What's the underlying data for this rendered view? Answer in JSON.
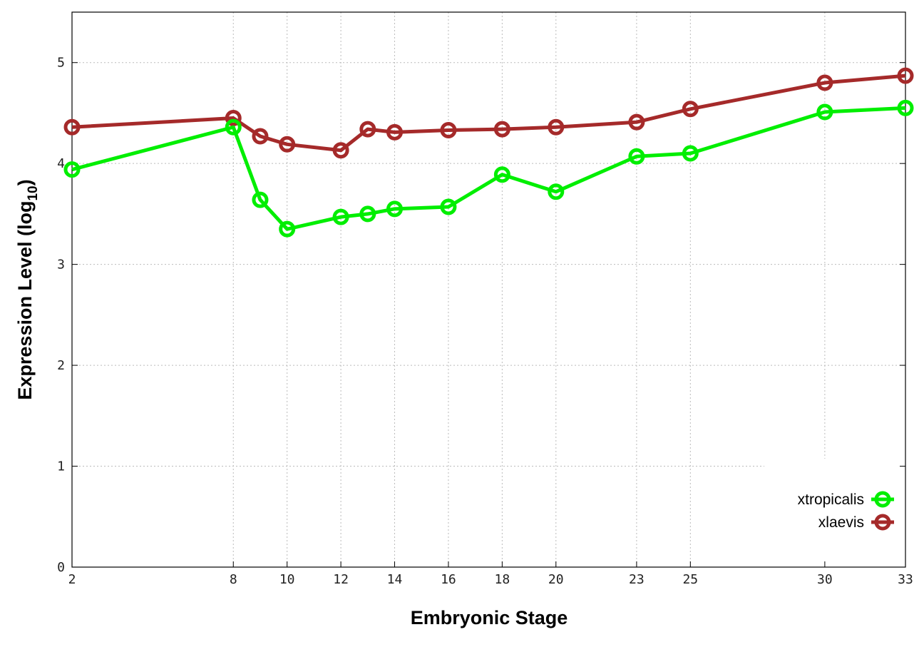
{
  "chart_data": {
    "type": "line",
    "title": "",
    "xlabel": "Embryonic Stage",
    "ylabel": "Expression Level (log10)",
    "ylabel_main": "Expression Level (log",
    "ylabel_sub": "10",
    "ylabel_close": ")",
    "xlim": [
      2,
      33
    ],
    "ylim": [
      0,
      5.5
    ],
    "xticks": [
      2,
      8,
      10,
      12,
      14,
      16,
      18,
      20,
      23,
      25,
      30,
      33
    ],
    "yticks": [
      0,
      1,
      2,
      3,
      4,
      5
    ],
    "grid": true,
    "legend_position": "bottom-right",
    "x": [
      2,
      8,
      9,
      10,
      12,
      13,
      14,
      16,
      18,
      20,
      23,
      25,
      30,
      33
    ],
    "series": [
      {
        "name": "xtropicalis",
        "color": "#00ee00",
        "values": [
          3.94,
          4.36,
          3.64,
          3.35,
          3.47,
          3.5,
          3.55,
          3.57,
          3.89,
          3.72,
          4.07,
          4.1,
          4.51,
          4.55
        ]
      },
      {
        "name": "xlaevis",
        "color": "#a52a2a",
        "values": [
          4.36,
          4.45,
          4.27,
          4.19,
          4.13,
          4.34,
          4.31,
          4.33,
          4.34,
          4.36,
          4.41,
          4.54,
          4.8,
          4.87
        ]
      }
    ]
  }
}
